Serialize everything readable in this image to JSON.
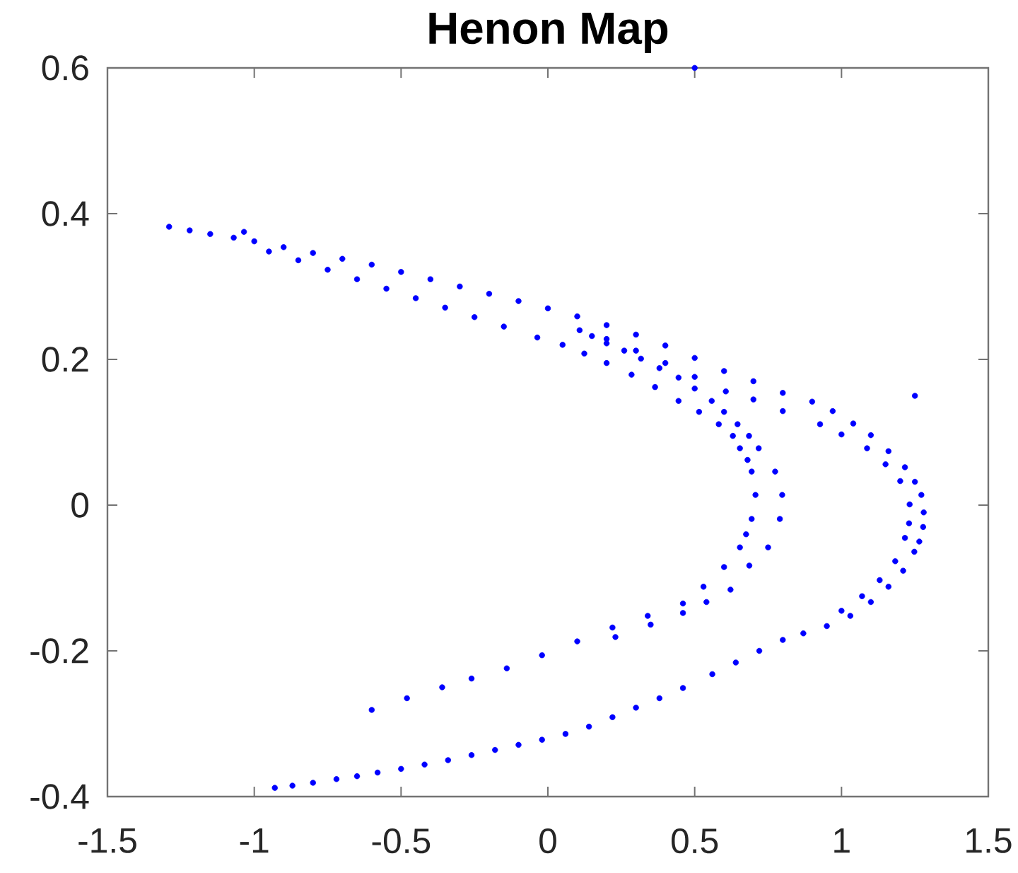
{
  "chart_data": {
    "type": "scatter",
    "title": "Henon Map",
    "x": [
      -1.29,
      -1.22,
      -1.15,
      -1.07,
      -1.0,
      -0.9,
      -0.8,
      -0.7,
      -0.6,
      -0.5,
      -0.4,
      -0.3,
      -0.2,
      -0.1,
      0.0,
      0.1,
      0.2,
      0.3,
      0.4,
      0.5,
      0.6,
      0.7,
      0.8,
      0.9,
      0.97,
      1.04,
      1.1,
      1.16,
      1.216,
      1.25,
      1.272,
      1.28,
      1.278,
      1.265,
      1.248,
      1.21,
      1.16,
      1.1,
      1.03,
      0.95,
      0.87,
      0.8,
      0.72,
      0.64,
      0.56,
      0.46,
      0.38,
      0.3,
      0.22,
      0.14,
      0.06,
      -0.02,
      -0.1,
      -0.18,
      -0.26,
      -0.34,
      -0.42,
      -0.5,
      -0.58,
      -0.65,
      -0.72,
      -0.8,
      -0.87,
      -0.93,
      0.2,
      0.3,
      0.4,
      0.5,
      0.606,
      0.7,
      0.8,
      0.927,
      1.0,
      1.087,
      1.15,
      1.2,
      1.232,
      1.23,
      1.216,
      1.183,
      1.13,
      1.07,
      1.0,
      -0.95,
      -0.85,
      -0.75,
      -0.65,
      -0.55,
      -0.45,
      -0.35,
      -0.25,
      -0.15,
      -0.036,
      0.05,
      0.124,
      0.2,
      0.285,
      0.365,
      0.445,
      0.515,
      0.582,
      0.63,
      0.654,
      0.68,
      0.694,
      0.707,
      0.694,
      0.675,
      0.654,
      0.6,
      0.53,
      0.46,
      0.34,
      0.22,
      0.1,
      -0.02,
      -0.14,
      -0.26,
      -0.36,
      -0.48,
      -0.6,
      0.108,
      0.15,
      0.2,
      0.26,
      0.317,
      0.38,
      0.445,
      0.5,
      0.558,
      0.6,
      0.646,
      0.685,
      0.718,
      0.774,
      0.798,
      0.79,
      0.75,
      0.686,
      0.622,
      0.54,
      0.46,
      0.35,
      0.23,
      0.5,
      1.25,
      -1.035
    ],
    "values": [
      0.382,
      0.377,
      0.372,
      0.367,
      0.362,
      0.354,
      0.346,
      0.338,
      0.33,
      0.32,
      0.31,
      0.3,
      0.29,
      0.28,
      0.27,
      0.259,
      0.247,
      0.234,
      0.219,
      0.202,
      0.184,
      0.17,
      0.154,
      0.142,
      0.129,
      0.112,
      0.096,
      0.074,
      0.052,
      0.032,
      0.014,
      -0.01,
      -0.03,
      -0.05,
      -0.064,
      -0.09,
      -0.112,
      -0.133,
      -0.152,
      -0.166,
      -0.176,
      -0.185,
      -0.2,
      -0.216,
      -0.232,
      -0.251,
      -0.265,
      -0.278,
      -0.291,
      -0.304,
      -0.314,
      -0.322,
      -0.329,
      -0.336,
      -0.343,
      -0.35,
      -0.356,
      -0.362,
      -0.367,
      -0.372,
      -0.376,
      -0.381,
      -0.385,
      -0.388,
      0.228,
      0.212,
      0.195,
      0.176,
      0.156,
      0.145,
      0.129,
      0.111,
      0.097,
      0.078,
      0.056,
      0.033,
      0.001,
      -0.025,
      -0.045,
      -0.077,
      -0.103,
      -0.125,
      -0.145,
      0.348,
      0.336,
      0.323,
      0.31,
      0.297,
      0.284,
      0.271,
      0.258,
      0.245,
      0.23,
      0.22,
      0.208,
      0.195,
      0.179,
      0.162,
      0.143,
      0.128,
      0.111,
      0.095,
      0.078,
      0.062,
      0.046,
      0.014,
      -0.019,
      -0.04,
      -0.058,
      -0.085,
      -0.112,
      -0.135,
      -0.152,
      -0.168,
      -0.187,
      -0.206,
      -0.224,
      -0.238,
      -0.25,
      -0.265,
      -0.281,
      0.24,
      0.232,
      0.222,
      0.212,
      0.201,
      0.188,
      0.175,
      0.16,
      0.143,
      0.128,
      0.111,
      0.095,
      0.078,
      0.046,
      0.014,
      -0.019,
      -0.058,
      -0.083,
      -0.116,
      -0.133,
      -0.148,
      -0.164,
      -0.181,
      0.6,
      0.15,
      0.375
    ],
    "color": "#0000ff",
    "marker": "circle",
    "xlim": [
      -1.5,
      1.5
    ],
    "ylim": [
      -0.4,
      0.6
    ],
    "xticks": [
      -1.5,
      -1,
      -0.5,
      0,
      0.5,
      1,
      1.5
    ],
    "yticks": [
      -0.4,
      -0.2,
      0,
      0.2,
      0.4,
      0.6
    ]
  }
}
